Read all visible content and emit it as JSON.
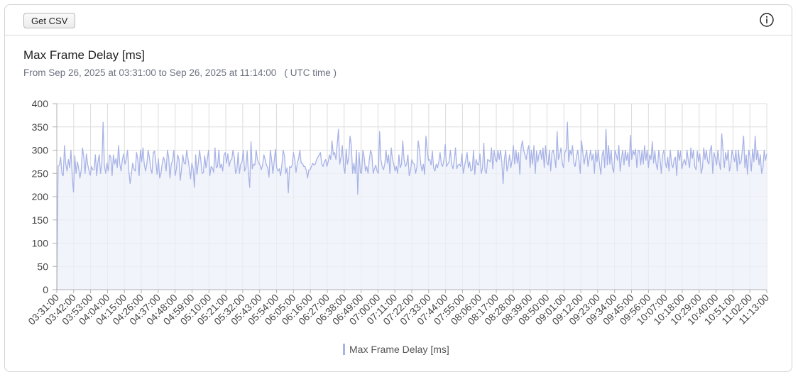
{
  "toolbar": {
    "csv_label": "Get CSV"
  },
  "header": {
    "title": "Max Frame Delay [ms]",
    "range_text": "From Sep 26, 2025 at 03:31:00 to Sep 26, 2025 at 11:14:00",
    "tz_text": "( UTC time )"
  },
  "colors": {
    "line": "#a8b3e6",
    "fill": "#eef0fa",
    "grid": "#dcdcdc",
    "axis": "#b0b0b0"
  },
  "icons": {
    "info": "info-icon"
  },
  "chart_data": {
    "type": "area",
    "title": "Max Frame Delay [ms]",
    "xlabel": "",
    "ylabel": "",
    "ylim": [
      0,
      400
    ],
    "yticks": [
      0,
      50,
      100,
      150,
      200,
      250,
      300,
      350,
      400
    ],
    "x_tick_labels": [
      "03:31:00",
      "03:42:00",
      "03:53:00",
      "04:04:00",
      "04:15:00",
      "04:26:00",
      "04:37:00",
      "04:48:00",
      "04:59:00",
      "05:10:00",
      "05:21:00",
      "05:32:00",
      "05:43:00",
      "05:54:00",
      "06:05:00",
      "06:16:00",
      "06:27:00",
      "06:38:00",
      "06:49:00",
      "07:00:00",
      "07:11:00",
      "07:22:00",
      "07:33:00",
      "07:44:00",
      "07:55:00",
      "08:06:00",
      "08:17:00",
      "08:28:00",
      "08:39:00",
      "08:50:00",
      "09:01:00",
      "09:12:00",
      "09:23:00",
      "09:34:00",
      "09:45:00",
      "09:56:00",
      "10:07:00",
      "10:18:00",
      "10:29:00",
      "10:40:00",
      "10:51:00",
      "11:02:00",
      "11:13:00"
    ],
    "x_start": "03:31:00",
    "x_end": "11:14:00",
    "grid": true,
    "legend": "bottom",
    "series": [
      {
        "name": "Max Frame Delay [ms]",
        "values": [
          0,
          265,
          268,
          285,
          250,
          245,
          310,
          270,
          255,
          280,
          262,
          300,
          245,
          210,
          288,
          250,
          275,
          262,
          240,
          258,
          305,
          285,
          250,
          292,
          270,
          256,
          246,
          265,
          258,
          258,
          290,
          245,
          275,
          290,
          250,
          270,
          360,
          268,
          250,
          272,
          255,
          290,
          285,
          245,
          290,
          270,
          282,
          262,
          310,
          270,
          255,
          280,
          292,
          270,
          280,
          300,
          255,
          228,
          250,
          272,
          260,
          255,
          295,
          280,
          245,
          300,
          275,
          305,
          270,
          255,
          270,
          300,
          285,
          260,
          250,
          295,
          298,
          275,
          248,
          282,
          240,
          250,
          272,
          285,
          275,
          255,
          300,
          285,
          240,
          270,
          278,
          300,
          245,
          260,
          290,
          280,
          235,
          260,
          290,
          272,
          270,
          300,
          282,
          262,
          238,
          272,
          260,
          220,
          290,
          248,
          272,
          300,
          278,
          250,
          252,
          288,
          262,
          280,
          300,
          245,
          265,
          262,
          252,
          305,
          262,
          265,
          300,
          262,
          270,
          255,
          290,
          295,
          272,
          292,
          265,
          278,
          280,
          300,
          285,
          250,
          258,
          295,
          250,
          270,
          275,
          300,
          255,
          262,
          298,
          250,
          220,
          318,
          260,
          270,
          268,
          300,
          280,
          272,
          268,
          258,
          268,
          290,
          280,
          268,
          262,
          242,
          300,
          280,
          250,
          275,
          302,
          262,
          255,
          260,
          245,
          268,
          300,
          288,
          250,
          262,
          208,
          265,
          262,
          268,
          295,
          280,
          252,
          272,
          282,
          300,
          272,
          272,
          265,
          265,
          256,
          240,
          258,
          258,
          265,
          272,
          268,
          270,
          280,
          285,
          290,
          295,
          270,
          265,
          275,
          280,
          265,
          275,
          290,
          280,
          320,
          290,
          295,
          280,
          312,
          345,
          270,
          285,
          310,
          265,
          250,
          302,
          270,
          285,
          330,
          310,
          250,
          272,
          250,
          300,
          205,
          295,
          252,
          250,
          300,
          285,
          255,
          265,
          250,
          280,
          300,
          290,
          250,
          260,
          268,
          255,
          250,
          340,
          280,
          265,
          258,
          270,
          300,
          272,
          290,
          250,
          305,
          280,
          270,
          255,
          265,
          250,
          290,
          262,
          270,
          320,
          280,
          265,
          270,
          290,
          245,
          255,
          280,
          272,
          270,
          250,
          265,
          320,
          300,
          270,
          255,
          270,
          248,
          330,
          300,
          278,
          280,
          268,
          298,
          262,
          255,
          270,
          262,
          275,
          295,
          270,
          265,
          280,
          312,
          265,
          270,
          275,
          300,
          270,
          260,
          278,
          305,
          260,
          268,
          270,
          265,
          292,
          250,
          265,
          280,
          295,
          262,
          275,
          255,
          258,
          300,
          248,
          280,
          270,
          268,
          292,
          250,
          262,
          315,
          255,
          250,
          280,
          278,
          275,
          305,
          260,
          300,
          280,
          275,
          300,
          280,
          300,
          275,
          228,
          280,
          300,
          255,
          268,
          290,
          262,
          278,
          310,
          270,
          300,
          272,
          295,
          248,
          305,
          320,
          300,
          290,
          280,
          300,
          310,
          262,
          300,
          270,
          310,
          250,
          298,
          275,
          292,
          300,
          280,
          305,
          262,
          310,
          275,
          268,
          300,
          255,
          295,
          300,
          285,
          262,
          340,
          280,
          290,
          305,
          272,
          262,
          295,
          300,
          360,
          275,
          300,
          290,
          310,
          272,
          265,
          285,
          300,
          278,
          250,
          320,
          295,
          270,
          288,
          300,
          265,
          282,
          300,
          278,
          292,
          250,
          300,
          275,
          300,
          270,
          248,
          290,
          300,
          262,
          345,
          268,
          310,
          270,
          300,
          262,
          252,
          300,
          290,
          278,
          310,
          255,
          282,
          300,
          268,
          300,
          278,
          295,
          265,
          332,
          280,
          300,
          290,
          302,
          262,
          300,
          298,
          268,
          300,
          270,
          310,
          278,
          300,
          262,
          290,
          280,
          318,
          272,
          298,
          270,
          258,
          300,
          282,
          250,
          290,
          300,
          275,
          262,
          285,
          255,
          300,
          270,
          262,
          280,
          285,
          245,
          300,
          278,
          298,
          260,
          272,
          280,
          268,
          300,
          278,
          262,
          305,
          282,
          300,
          265,
          258,
          298,
          275,
          292,
          250,
          262,
          305,
          280,
          300,
          276,
          270,
          300,
          310,
          250,
          295,
          282,
          268,
          300,
          275,
          258,
          335,
          300,
          262,
          295,
          278,
          300,
          255,
          268,
          300,
          288,
          275,
          300,
          255,
          300,
          270,
          275,
          300,
          330,
          262,
          290,
          248,
          300,
          285,
          255,
          302,
          275,
          330,
          280,
          300,
          268,
          290,
          250,
          262,
          300,
          278,
          292
        ]
      }
    ]
  }
}
